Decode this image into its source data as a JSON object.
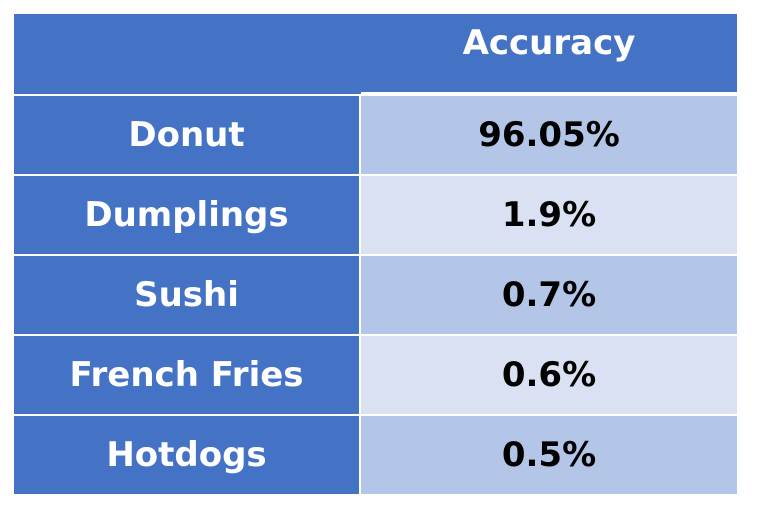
{
  "table": {
    "header": {
      "label_col": "",
      "value_col": "Accuracy"
    },
    "rows": [
      {
        "label": "Donut",
        "value": "96.05%"
      },
      {
        "label": "Dumplings",
        "value": "1.9%"
      },
      {
        "label": "Sushi",
        "value": "0.7%"
      },
      {
        "label": "French Fries",
        "value": "0.6%"
      },
      {
        "label": "Hotdogs",
        "value": "0.5%"
      }
    ]
  },
  "colors": {
    "header_blue": "#4472c4",
    "row_light_1": "#b4c6e7",
    "row_light_2": "#d9e1f2",
    "header_text": "#ffffff",
    "value_text": "#000000"
  }
}
